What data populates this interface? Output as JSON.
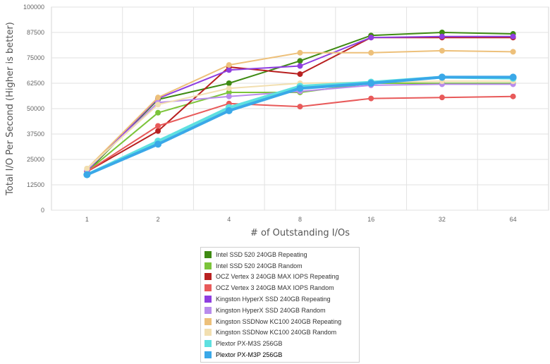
{
  "chart_data": {
    "type": "line",
    "title": "",
    "xlabel": "# of Outstanding I/Os",
    "ylabel": "Total I/O Per Second (Higher is better)",
    "categories": [
      "1",
      "2",
      "4",
      "8",
      "16",
      "32",
      "64"
    ],
    "ylim": [
      0,
      100000
    ],
    "yticks": [
      "0",
      "12500",
      "25000",
      "37500",
      "50000",
      "62500",
      "75000",
      "87500",
      "100000"
    ],
    "grid": true,
    "legend_position": "bottom",
    "series": [
      {
        "name": "Intel SSD 520 240GB Repeating",
        "color": "#3e8a12",
        "values": [
          19000,
          54500,
          62500,
          73500,
          86000,
          87500,
          86800
        ]
      },
      {
        "name": "Intel SSD 520 240GB Random",
        "color": "#7cc43a",
        "values": [
          19000,
          48000,
          58000,
          58000,
          62500,
          62500,
          62500
        ]
      },
      {
        "name": "OCZ Vertex 3 240GB MAX IOPS Repeating",
        "color": "#b82020",
        "values": [
          19000,
          39000,
          70500,
          67000,
          85000,
          85000,
          85000
        ]
      },
      {
        "name": "OCZ Vertex 3 240GB MAX IOPS Random",
        "color": "#e85a5a",
        "values": [
          19000,
          41500,
          52500,
          51000,
          55000,
          55500,
          56000
        ]
      },
      {
        "name": "Kingston HyperX SSD 240GB Repeating",
        "color": "#8f3ee0",
        "values": [
          19500,
          55000,
          69000,
          71000,
          85000,
          85500,
          85500
        ]
      },
      {
        "name": "Kingston HyperX SSD 240GB Random",
        "color": "#b98cec",
        "values": [
          20000,
          53000,
          56000,
          58500,
          61500,
          62000,
          62000
        ]
      },
      {
        "name": "Kingston SSDNow KC100 240GB Repeating",
        "color": "#edc07a",
        "values": [
          20500,
          55500,
          71500,
          77500,
          77500,
          78500,
          78000
        ]
      },
      {
        "name": "Kingston SSDNow KC100 240GB Random",
        "color": "#f2dfb0",
        "values": [
          20500,
          52000,
          60000,
          62500,
          63000,
          63500,
          63500
        ]
      },
      {
        "name": "Plextor PX-M3S 256GB",
        "color": "#5ee0e0",
        "values": [
          17500,
          34000,
          50500,
          61000,
          63000,
          65500,
          65000
        ]
      },
      {
        "name": "Plextor PX-M3P 256GB",
        "color": "#3aa8e8",
        "values": [
          17500,
          32500,
          49000,
          60000,
          62500,
          65500,
          65500
        ]
      }
    ]
  }
}
